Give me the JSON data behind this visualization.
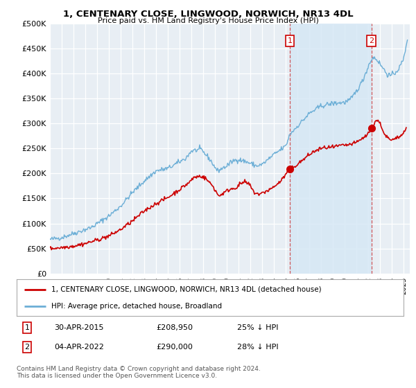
{
  "title": "1, CENTENARY CLOSE, LINGWOOD, NORWICH, NR13 4DL",
  "subtitle": "Price paid vs. HM Land Registry's House Price Index (HPI)",
  "ylabel_ticks": [
    "£0",
    "£50K",
    "£100K",
    "£150K",
    "£200K",
    "£250K",
    "£300K",
    "£350K",
    "£400K",
    "£450K",
    "£500K"
  ],
  "ytick_values": [
    0,
    50000,
    100000,
    150000,
    200000,
    250000,
    300000,
    350000,
    400000,
    450000,
    500000
  ],
  "hpi_color": "#6baed6",
  "hpi_fill_color": "#d6e8f5",
  "price_color": "#cc0000",
  "annotation1_date": 2015.33,
  "annotation1_value": 208950,
  "annotation1_label": "1",
  "annotation2_date": 2022.25,
  "annotation2_value": 290000,
  "annotation2_label": "2",
  "legend_line1": "1, CENTENARY CLOSE, LINGWOOD, NORWICH, NR13 4DL (detached house)",
  "legend_line2": "HPI: Average price, detached house, Broadland",
  "note1_label": "1",
  "note1_date": "30-APR-2015",
  "note1_price": "£208,950",
  "note1_pct": "25% ↓ HPI",
  "note2_label": "2",
  "note2_date": "04-APR-2022",
  "note2_price": "£290,000",
  "note2_pct": "28% ↓ HPI",
  "footer": "Contains HM Land Registry data © Crown copyright and database right 2024.\nThis data is licensed under the Open Government Licence v3.0.",
  "xmin": 1995.0,
  "xmax": 2025.5,
  "ymin": 0,
  "ymax": 500000,
  "vline1_x": 2015.33,
  "vline2_x": 2022.25,
  "background_color": "#e8eef4"
}
